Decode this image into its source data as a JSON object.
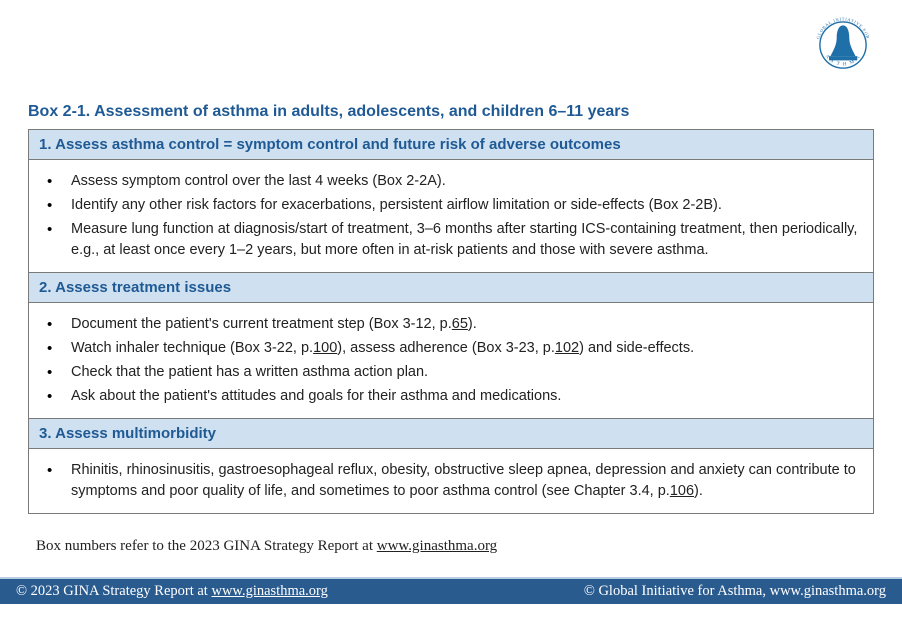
{
  "colors": {
    "header_bg": "#cfe1f0",
    "header_text": "#1f5a95",
    "border": "#7a7a7a",
    "footer_bg": "#2a5b8f",
    "footer_border": "#b7cde2",
    "body_text": "#222222",
    "link": "#1f5a95"
  },
  "logo": {
    "top_text": "GLOBAL INITIATIVE FOR",
    "bottom_text": "ASTHMA",
    "circle_color": "#1f6fa8",
    "icon_color": "#1f6fa8"
  },
  "title": "Box 2-1. Assessment of asthma in adults, adolescents, and children 6–11 years",
  "sections": [
    {
      "header": "1. Assess asthma control = symptom control and future risk of adverse outcomes",
      "items": [
        {
          "text": "Assess symptom control over the last 4 weeks (Box 2-2A)."
        },
        {
          "text": "Identify any other risk factors for exacerbations, persistent airflow limitation or side-effects (Box 2-2B)."
        },
        {
          "text": "Measure lung function at diagnosis/start of treatment, 3–6 months after starting ICS-containing treatment, then periodically, e.g., at least once every 1–2 years, but more often in at-risk patients and those with severe asthma."
        }
      ]
    },
    {
      "header": "2. Assess treatment issues",
      "items": [
        {
          "html": "Document the patient's current treatment step (Box 3-12, p.<span class=\"underline\">65</span>)."
        },
        {
          "html": "Watch inhaler technique (Box 3-22, p.<span class=\"underline\">100</span>), assess adherence (Box 3-23, p.<span class=\"underline\">102</span>) and side-effects."
        },
        {
          "text": "Check that the patient has a written asthma action plan."
        },
        {
          "text": "Ask about the patient's attitudes and goals for their asthma and medications."
        }
      ]
    },
    {
      "header": "3. Assess multimorbidity",
      "items": [
        {
          "html": "Rhinitis, rhinosinusitis, gastroesophageal reflux, obesity, obstructive sleep apnea, depression and anxiety can contribute to symptoms and poor quality of life, and sometimes to poor asthma control (see Chapter 3.4, p.<span class=\"underline\">106</span>)."
        }
      ]
    }
  ],
  "footnote": {
    "prefix": "Box numbers refer to the 2023 GINA Strategy Report at ",
    "link": "www.ginasthma.org"
  },
  "footer": {
    "left_prefix": "© 2023 GINA Strategy Report at ",
    "left_link": "www.ginasthma.org",
    "right": "© Global Initiative for Asthma, www.ginasthma.org"
  }
}
